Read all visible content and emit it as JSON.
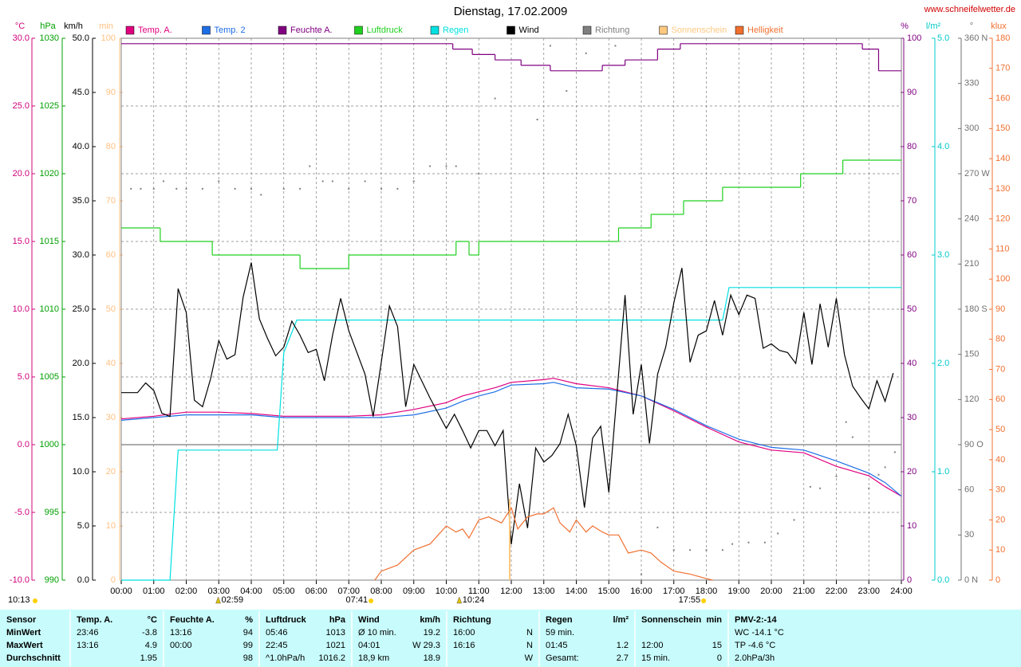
{
  "chart_data": {
    "type": "line",
    "title": "Dienstag, 17.02.2009",
    "source": "www.schneifelwetter.de",
    "footer_time": "10:13",
    "xlim": [
      0,
      24
    ],
    "xticks": [
      {
        "value": 0,
        "label": "00:00"
      },
      {
        "value": 1,
        "label": "01:00"
      },
      {
        "value": 2,
        "label": "02:00"
      },
      {
        "value": 3,
        "label": "03:00"
      },
      {
        "value": 4,
        "label": "04:00"
      },
      {
        "value": 5,
        "label": "05:00"
      },
      {
        "value": 6,
        "label": "06:00"
      },
      {
        "value": 7,
        "label": "07:00"
      },
      {
        "value": 8,
        "label": "08:00"
      },
      {
        "value": 9,
        "label": "09:00"
      },
      {
        "value": 10,
        "label": "10:00"
      },
      {
        "value": 11,
        "label": "11:00"
      },
      {
        "value": 12,
        "label": "12:00"
      },
      {
        "value": 13,
        "label": "13:00"
      },
      {
        "value": 14,
        "label": "14:00"
      },
      {
        "value": 15,
        "label": "15:00"
      },
      {
        "value": 16,
        "label": "16:00"
      },
      {
        "value": 17,
        "label": "17:00"
      },
      {
        "value": 18,
        "label": "18:00"
      },
      {
        "value": 19,
        "label": "19:00"
      },
      {
        "value": 20,
        "label": "20:00"
      },
      {
        "value": 21,
        "label": "21:00"
      },
      {
        "value": 22,
        "label": "22:00"
      },
      {
        "value": 23,
        "label": "23:00"
      },
      {
        "value": 24,
        "label": "24:00"
      }
    ],
    "grid": true,
    "axes": [
      {
        "unit": "°C",
        "color": "#d0007a",
        "side": "left",
        "lim": [
          -10,
          30
        ],
        "grid": true,
        "zero_line": true,
        "ticks": [
          {
            "value": -10,
            "label": "-10.0"
          },
          {
            "value": -5,
            "label": "-5.0"
          },
          {
            "value": 0,
            "label": "0.0"
          },
          {
            "value": 5,
            "label": "5.0"
          },
          {
            "value": 10,
            "label": "10.0"
          },
          {
            "value": 15,
            "label": "15.0"
          },
          {
            "value": 20,
            "label": "20.0"
          },
          {
            "value": 25,
            "label": "25.0"
          },
          {
            "value": 30,
            "label": "30.0"
          }
        ]
      },
      {
        "unit": "hPa",
        "color": "#00a000",
        "side": "left",
        "lim": [
          990,
          1030
        ],
        "ticks": [
          990,
          995,
          1000,
          1005,
          1010,
          1015,
          1020,
          1025,
          1030
        ]
      },
      {
        "unit": "km/h",
        "color": "#000000",
        "side": "left",
        "lim": [
          0,
          50
        ],
        "ticks": [
          {
            "value": 0,
            "label": "0.0"
          },
          {
            "value": 5,
            "label": "5.0"
          },
          {
            "value": 10,
            "label": "10.0"
          },
          {
            "value": 15,
            "label": "15.0"
          },
          {
            "value": 20,
            "label": "20.0"
          },
          {
            "value": 25,
            "label": "25.0"
          },
          {
            "value": 30,
            "label": "30.0"
          },
          {
            "value": 35,
            "label": "35.0"
          },
          {
            "value": 40,
            "label": "40.0"
          },
          {
            "value": 45,
            "label": "45.0"
          },
          {
            "value": 50,
            "label": "50.0"
          }
        ]
      },
      {
        "unit": "min",
        "color": "#ffc080",
        "side": "left",
        "lim": [
          0,
          100
        ],
        "ticks": [
          0,
          10,
          20,
          30,
          40,
          50,
          60,
          70,
          80,
          90,
          100
        ]
      },
      {
        "unit": "%",
        "color": "#800080",
        "side": "right",
        "lim": [
          0,
          100
        ],
        "ticks": [
          0,
          10,
          20,
          30,
          40,
          50,
          60,
          70,
          80,
          90,
          100
        ]
      },
      {
        "unit": "l/m²",
        "color": "#00c8c8",
        "side": "right",
        "lim": [
          0,
          5
        ],
        "ticks": [
          {
            "value": 0,
            "label": "0.0"
          },
          {
            "value": 1,
            "label": "1.0"
          },
          {
            "value": 2,
            "label": "2.0"
          },
          {
            "value": 3,
            "label": "3.0"
          },
          {
            "value": 4,
            "label": "4.0"
          },
          {
            "value": 5,
            "label": "5.0"
          }
        ]
      },
      {
        "unit": "°",
        "color": "#707070",
        "side": "right",
        "lim": [
          0,
          360
        ],
        "ticks": [
          {
            "value": 0,
            "label": "0 N"
          },
          30,
          60,
          {
            "value": 90,
            "label": "90 O"
          },
          120,
          150,
          {
            "value": 180,
            "label": "180 S"
          },
          210,
          240,
          {
            "value": 270,
            "label": "270 W"
          },
          300,
          330,
          {
            "value": 360,
            "label": "360 N"
          }
        ]
      },
      {
        "unit": "klux",
        "color": "#f07030",
        "side": "right",
        "lim": [
          0,
          180
        ],
        "ticks": [
          0,
          10,
          20,
          30,
          40,
          50,
          60,
          70,
          80,
          90,
          100,
          110,
          120,
          130,
          140,
          150,
          160,
          170,
          180
        ]
      }
    ],
    "series": [
      {
        "name": "Temp. A.",
        "color": "#e0007f",
        "axis": "°C",
        "style": "line",
        "x": [
          0,
          1,
          2,
          3,
          4,
          5,
          6,
          7,
          8,
          9,
          10,
          10.5,
          11,
          11.5,
          12,
          13,
          13.3,
          14,
          15,
          16,
          17,
          18,
          19,
          20,
          21,
          22,
          23,
          23.5,
          24
        ],
        "values": [
          1.9,
          2.1,
          2.4,
          2.4,
          2.3,
          2.1,
          2.1,
          2.1,
          2.2,
          2.6,
          3.1,
          3.6,
          3.9,
          4.2,
          4.6,
          4.8,
          4.9,
          4.5,
          4.2,
          3.6,
          2.5,
          1.3,
          0.2,
          -0.4,
          -0.6,
          -1.6,
          -2.3,
          -3.1,
          -3.8
        ]
      },
      {
        "name": "Temp. 2",
        "color": "#1e6ee6",
        "axis": "°C",
        "style": "line",
        "x": [
          0,
          1,
          2,
          3,
          4,
          5,
          6,
          7,
          8,
          9,
          10,
          10.5,
          11,
          11.5,
          12,
          13,
          13.3,
          14,
          15,
          16,
          17,
          18,
          19,
          20,
          21,
          22,
          23,
          23.5,
          24
        ],
        "values": [
          1.8,
          2.0,
          2.2,
          2.2,
          2.2,
          2.0,
          2.0,
          2.0,
          2.0,
          2.2,
          2.7,
          3.2,
          3.6,
          3.9,
          4.4,
          4.5,
          4.6,
          4.2,
          4.1,
          3.6,
          2.6,
          1.4,
          0.4,
          -0.2,
          -0.4,
          -1.2,
          -2.1,
          -2.8,
          -3.8
        ]
      },
      {
        "name": "Feuchte A.",
        "color": "#800080",
        "axis": "%",
        "style": "step",
        "x": [
          0,
          10.2,
          10.8,
          11.5,
          12.3,
          13.2,
          14.8,
          15.5,
          16.5,
          17.2,
          22.8,
          23.3,
          24
        ],
        "values": [
          99,
          98,
          97,
          96,
          95,
          94,
          95,
          96,
          98,
          99,
          98,
          94,
          94
        ]
      },
      {
        "name": "Luftdruck",
        "color": "#20d020",
        "axis": "hPa",
        "style": "step",
        "x": [
          0,
          1.2,
          2.8,
          5.5,
          7,
          10.3,
          10.7,
          11,
          15.3,
          16.3,
          17.3,
          18.5,
          20.9,
          22.2,
          24
        ],
        "values": [
          1016,
          1015,
          1014,
          1013,
          1014,
          1015,
          1014,
          1015,
          1016,
          1017,
          1018,
          1019,
          1020,
          1021,
          1021
        ]
      },
      {
        "name": "Regen",
        "color": "#00e0e0",
        "axis": "l/m²",
        "style": "line",
        "x": [
          0,
          1.5,
          1.75,
          4.8,
          5.0,
          5.4,
          18.5,
          18.7,
          24
        ],
        "values": [
          0,
          0,
          1.2,
          1.2,
          2.1,
          2.4,
          2.4,
          2.7,
          2.7
        ]
      },
      {
        "name": "Wind",
        "color": "#000000",
        "axis": "km/h",
        "style": "line",
        "x": [
          0,
          0.5,
          0.75,
          1,
          1.25,
          1.5,
          1.75,
          2,
          2.25,
          2.5,
          2.75,
          3,
          3.25,
          3.5,
          3.75,
          4,
          4.25,
          4.5,
          4.75,
          5,
          5.25,
          5.5,
          5.75,
          6,
          6.25,
          6.5,
          6.75,
          7,
          7.5,
          7.75,
          8,
          8.25,
          8.5,
          8.75,
          9,
          9.5,
          10,
          10.25,
          10.5,
          10.75,
          11,
          11.25,
          11.5,
          11.75,
          12,
          12.25,
          12.5,
          12.75,
          13,
          13.25,
          13.5,
          13.75,
          14,
          14.25,
          14.5,
          14.75,
          15,
          15.5,
          15.75,
          16,
          16.25,
          16.5,
          16.75,
          17,
          17.25,
          17.5,
          17.75,
          18,
          18.25,
          18.5,
          18.75,
          19,
          19.25,
          19.5,
          19.75,
          20,
          20.25,
          20.5,
          20.75,
          21,
          21.25,
          21.5,
          21.75,
          22,
          22.25,
          22.5,
          22.75,
          23,
          23.25,
          23.5,
          23.75
        ],
        "values": [
          17.3,
          17.3,
          18.2,
          17.5,
          15.4,
          15.1,
          26.9,
          24.7,
          16.6,
          16.0,
          18.6,
          22.1,
          20.4,
          20.8,
          26.1,
          29.3,
          24.1,
          22.3,
          20.7,
          21.5,
          23.9,
          22.6,
          21.0,
          21.3,
          18.4,
          22.6,
          26.0,
          23.0,
          19.0,
          15.1,
          20.1,
          25.3,
          23.4,
          16.0,
          19.9,
          16.8,
          14.0,
          15.3,
          13.8,
          12.2,
          13.8,
          13.8,
          12.4,
          13.8,
          3.3,
          8.9,
          4.8,
          12.2,
          10.9,
          11.5,
          12.6,
          15.3,
          12.4,
          6.7,
          13.1,
          14.2,
          8.1,
          26.3,
          15.3,
          19.9,
          12.6,
          19.0,
          21.5,
          25.6,
          28.8,
          20.1,
          22.6,
          23.0,
          25.8,
          22.6,
          26.3,
          24.5,
          26.3,
          26.0,
          21.4,
          21.8,
          21.2,
          21.0,
          20.0,
          24.7,
          19.9,
          25.5,
          21.5,
          26.0,
          20.8,
          17.9,
          16.8,
          15.8,
          18.4,
          16.5,
          19.1
        ]
      },
      {
        "name": "Richtung",
        "color": "#808080",
        "axis": "°",
        "style": "dots",
        "x": [
          0.3,
          0.6,
          1,
          1.3,
          1.7,
          2,
          2.5,
          3,
          3.5,
          4,
          4.3,
          5,
          5.5,
          5.8,
          6.2,
          6.5,
          7,
          7.5,
          8,
          8.5,
          9,
          9.5,
          10,
          10.3,
          11,
          11.5,
          12.8,
          13.2,
          13.7,
          14.3,
          15.2,
          16,
          16.5,
          17,
          17.5,
          18,
          18.5,
          18.8,
          19.3,
          19.8,
          20.2,
          20.7,
          21.2,
          21.5,
          22,
          22.3,
          22.5,
          23,
          23.3,
          23.5,
          23.8
        ],
        "values": [
          260,
          260,
          260,
          265,
          260,
          260,
          260,
          265,
          260,
          260,
          256,
          260,
          260,
          275,
          265,
          265,
          260,
          265,
          260,
          260,
          265,
          275,
          275,
          275,
          270,
          320,
          306,
          355,
          325,
          350,
          355,
          4,
          35,
          20,
          20,
          20,
          20,
          24,
          25,
          25,
          31,
          40,
          62,
          61,
          69,
          105,
          95,
          61,
          70,
          75,
          85
        ]
      },
      {
        "name": "Sonnenschein",
        "color": "#ffc880",
        "axis": "min",
        "style": "bars",
        "x": [
          11.95
        ],
        "values": [
          15
        ]
      },
      {
        "name": "Helligkeit",
        "color": "#f07030",
        "axis": "klux",
        "style": "line",
        "x": [
          7.8,
          8,
          8.5,
          9,
          9.5,
          10,
          10.3,
          10.5,
          10.7,
          11,
          11.3,
          11.7,
          12,
          12.2,
          12.5,
          12.8,
          13,
          13.3,
          13.5,
          13.8,
          14,
          14.3,
          14.5,
          14.8,
          15,
          15.3,
          15.6,
          16,
          16.3,
          16.6,
          17,
          17.5,
          18,
          18.2
        ],
        "values": [
          0,
          3,
          5,
          10,
          12,
          18,
          16,
          17,
          14,
          20,
          21,
          19,
          24,
          17,
          21,
          22,
          22,
          24,
          19,
          16,
          20,
          16,
          18,
          16,
          15,
          15,
          9,
          10,
          9,
          6,
          3,
          2,
          0.5,
          0
        ]
      }
    ],
    "annotations": [
      {
        "x": 2.983,
        "label": "02:59",
        "marker": "triangle"
      },
      {
        "x": 7.683,
        "label": "07:41",
        "marker": "sun"
      },
      {
        "x": 10.4,
        "label": "10:24",
        "marker": "triangle"
      },
      {
        "x": 17.917,
        "label": "17:55",
        "marker": "sun"
      }
    ]
  },
  "table": {
    "header": [
      [
        "Sensor"
      ],
      [
        "Temp. A.",
        "°C"
      ],
      [
        "Feuchte A.",
        "%"
      ],
      [
        "Luftdruck",
        "hPa"
      ],
      [
        "Wind",
        "km/h"
      ],
      [
        "Richtung"
      ],
      [
        "Regen",
        "l/m²"
      ],
      [
        "Sonnenschein",
        "min"
      ],
      [
        "PMV-2:-14"
      ]
    ],
    "rows": [
      [
        "MinWert",
        [
          "23:46",
          "-3.8"
        ],
        [
          "13:16",
          "94"
        ],
        [
          "05:46",
          "1013"
        ],
        [
          "Ø 10 min.",
          "19.2"
        ],
        [
          "16:00",
          "N"
        ],
        [
          "59 min.",
          null
        ],
        [
          null,
          null
        ],
        [
          "WC -14.1 °C"
        ]
      ],
      [
        "MaxWert",
        [
          "13:16",
          "4.9"
        ],
        [
          "00:00",
          "99"
        ],
        [
          "22:45",
          "1021"
        ],
        [
          "04:01",
          "W 29.3"
        ],
        [
          "16:16",
          "N"
        ],
        [
          "01:45",
          "1.2"
        ],
        [
          "12:00",
          "15"
        ],
        [
          "TP -4.6 °C"
        ]
      ],
      [
        "Durchschnitt",
        [
          null,
          "1.95"
        ],
        [
          null,
          "98"
        ],
        [
          "^1.0hPa/h",
          "1016.2"
        ],
        [
          "18,9 km",
          "18.9"
        ],
        [
          null,
          "W"
        ],
        [
          "Gesamt:",
          "2.7"
        ],
        [
          "15 min.",
          "0"
        ],
        [
          "2.0hPa/3h"
        ]
      ]
    ]
  }
}
